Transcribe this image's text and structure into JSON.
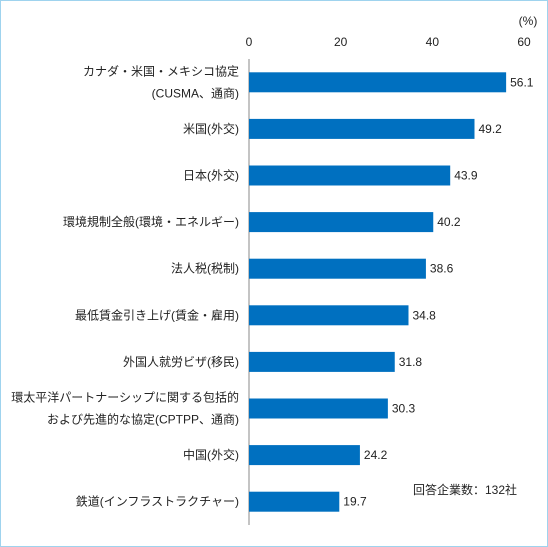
{
  "chart_data": {
    "type": "bar",
    "orientation": "horizontal",
    "unit": "(%)",
    "categories": [
      [
        "カナダ・米国・メキシコ協定",
        "(CUSMA、通商)"
      ],
      [
        "米国(外交)"
      ],
      [
        "日本(外交)"
      ],
      [
        "環境規制全般(環境・エネルギー)"
      ],
      [
        "法人税(税制)"
      ],
      [
        "最低賃金引き上げ(賃金・雇用)"
      ],
      [
        "外国人就労ビザ(移民)"
      ],
      [
        "環太平洋パートナーシップに関する包括的",
        "および先進的な協定(CPTPP、通商)"
      ],
      [
        "中国(外交)"
      ],
      [
        "鉄道(インフラストラクチャー)"
      ]
    ],
    "values": [
      56.1,
      49.2,
      43.9,
      40.2,
      38.6,
      34.8,
      31.8,
      30.3,
      24.2,
      19.7
    ],
    "value_labels": [
      "56.1",
      "49.2",
      "43.9",
      "40.2",
      "38.6",
      "34.8",
      "31.8",
      "30.3",
      "24.2",
      "19.7"
    ],
    "xlim": [
      0,
      60
    ],
    "xticks": [
      "0",
      "20",
      "40",
      "60"
    ],
    "note": "回答企業数：132社",
    "bar_color": "#0070c0",
    "grid": false,
    "legend": "none"
  }
}
